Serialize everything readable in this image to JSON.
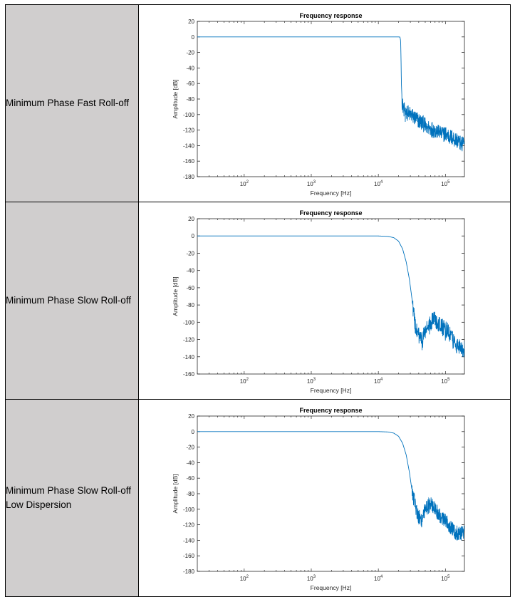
{
  "rows": [
    {
      "label": "Minimum Phase Fast Roll-off",
      "chart_data": {
        "type": "line",
        "title": "Frequency response",
        "xlabel": "Frequency [Hz]",
        "ylabel": "Amplitude [dB]",
        "xscale": "log",
        "xlim": [
          20,
          192000
        ],
        "ylim": [
          -180,
          20
        ],
        "yticks": [
          20,
          0,
          -20,
          -40,
          -60,
          -80,
          -100,
          -120,
          -140,
          -160,
          -180
        ],
        "xticks": [
          "10^2",
          "10^3",
          "10^4",
          "10^5"
        ],
        "grid": false,
        "series": [
          {
            "color": "#0072bd",
            "x": [
              20,
              100,
              1000,
              10000,
              20000,
              21000,
              21500,
              21800,
              22050,
              22300,
              22600,
              23000,
              24000,
              26000,
              30000,
              40000,
              60000,
              100000,
              140000,
              192000
            ],
            "y": [
              0,
              0,
              0,
              0,
              0,
              -0.2,
              -5,
              -30,
              -60,
              -70,
              -82,
              -88,
              -92,
              -96,
              -100,
              -108,
              -118,
              -125,
              -132,
              -138
            ]
          }
        ]
      }
    },
    {
      "label": "Minimum Phase Slow Roll-off",
      "chart_data": {
        "type": "line",
        "title": "Frequency response",
        "xlabel": "Frequency [Hz]",
        "ylabel": "Amplitude [dB]",
        "xscale": "log",
        "xlim": [
          20,
          192000
        ],
        "ylim": [
          -160,
          20
        ],
        "yticks": [
          20,
          0,
          -20,
          -40,
          -60,
          -80,
          -100,
          -120,
          -140,
          -160
        ],
        "xticks": [
          "10^2",
          "10^3",
          "10^4",
          "10^5"
        ],
        "grid": false,
        "series": [
          {
            "color": "#0072bd",
            "x": [
              20,
              100,
              1000,
              5000,
              10000,
              14000,
              17000,
              20000,
              23000,
              26000,
              29000,
              32000,
              35000,
              37000,
              40000,
              45000,
              50000,
              60000,
              70000,
              90000,
              110000,
              140000,
              192000
            ],
            "y": [
              0,
              0,
              0,
              0,
              0,
              -0.5,
              -2,
              -6,
              -15,
              -30,
              -50,
              -75,
              -100,
              -110,
              -115,
              -120,
              -110,
              -100,
              -96,
              -105,
              -110,
              -125,
              -130
            ]
          }
        ]
      }
    },
    {
      "label": "Minimum Phase Slow Roll-off\nLow Dispersion",
      "chart_data": {
        "type": "line",
        "title": "Frequency response",
        "xlabel": "Frequency [Hz]",
        "ylabel": "Amplitude [dB]",
        "xscale": "log",
        "xlim": [
          20,
          192000
        ],
        "ylim": [
          -180,
          20
        ],
        "yticks": [
          20,
          0,
          -20,
          -40,
          -60,
          -80,
          -100,
          -120,
          -140,
          -160,
          -180
        ],
        "xticks": [
          "10^2",
          "10^3",
          "10^4",
          "10^5"
        ],
        "grid": false,
        "series": [
          {
            "color": "#0072bd",
            "x": [
              20,
              100,
              1000,
              5000,
              10000,
              14000,
              17000,
              20000,
              23000,
              26000,
              29000,
              32000,
              35000,
              37000,
              40000,
              45000,
              50000,
              60000,
              70000,
              90000,
              110000,
              140000,
              192000
            ],
            "y": [
              0,
              0,
              0,
              0,
              0,
              -0.5,
              -2,
              -6,
              -15,
              -30,
              -52,
              -78,
              -92,
              -100,
              -108,
              -115,
              -100,
              -92,
              -100,
              -112,
              -118,
              -130,
              -130
            ]
          }
        ]
      }
    }
  ]
}
